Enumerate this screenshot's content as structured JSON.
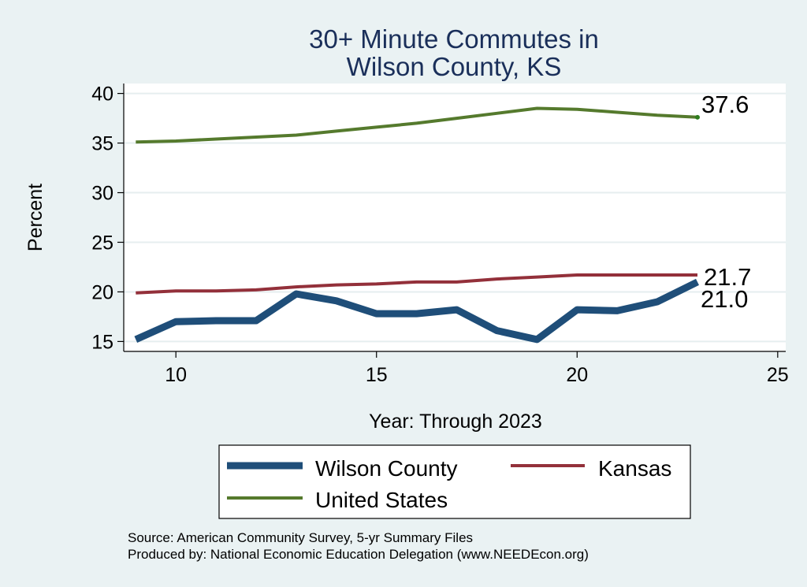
{
  "chart_data": {
    "type": "line",
    "title": [
      "30+ Minute Commutes in",
      "Wilson County, KS"
    ],
    "xlabel": "Year: Through 2023",
    "ylabel": "Percent",
    "xlim": [
      8.7,
      25.2
    ],
    "ylim": [
      14.0,
      41.0
    ],
    "xticks": [
      10,
      15,
      20,
      25
    ],
    "yticks": [
      15,
      20,
      25,
      30,
      35,
      40
    ],
    "grid": true,
    "legend_position": "bottom",
    "series": [
      {
        "name": "Wilson County",
        "color": "#1f4e79",
        "style": "thick",
        "x": [
          9,
          10,
          11,
          12,
          13,
          14,
          15,
          16,
          17,
          18,
          19,
          20,
          21,
          22,
          23
        ],
        "values": [
          15.2,
          17.0,
          17.1,
          17.1,
          19.8,
          19.1,
          17.8,
          17.8,
          18.2,
          16.1,
          15.2,
          18.2,
          18.1,
          19.0,
          21.0
        ],
        "end_label": "21.0"
      },
      {
        "name": "Kansas",
        "color": "#93303a",
        "style": "medium",
        "x": [
          9,
          10,
          11,
          12,
          13,
          14,
          15,
          16,
          17,
          18,
          19,
          20,
          21,
          22,
          23
        ],
        "values": [
          19.9,
          20.1,
          20.1,
          20.2,
          20.5,
          20.7,
          20.8,
          21.0,
          21.0,
          21.3,
          21.5,
          21.7,
          21.7,
          21.7,
          21.7
        ],
        "end_label": "21.7"
      },
      {
        "name": "United States",
        "color": "#557a2d",
        "style": "medium",
        "x": [
          9,
          10,
          11,
          12,
          13,
          14,
          15,
          16,
          17,
          18,
          19,
          20,
          21,
          22,
          23
        ],
        "values": [
          35.1,
          35.2,
          35.4,
          35.6,
          35.8,
          36.2,
          36.6,
          37.0,
          37.5,
          38.0,
          38.5,
          38.4,
          38.1,
          37.8,
          37.6
        ],
        "end_label": "37.6"
      }
    ],
    "legend": [
      {
        "label": "Wilson County",
        "series": 0
      },
      {
        "label": "Kansas",
        "series": 1
      },
      {
        "label": "United States",
        "series": 2
      }
    ]
  },
  "footnotes": {
    "source": "Source: American Community Survey, 5-yr Summary Files",
    "producer": "Produced by: National Economic Education Delegation (www.NEEDEcon.org)"
  }
}
